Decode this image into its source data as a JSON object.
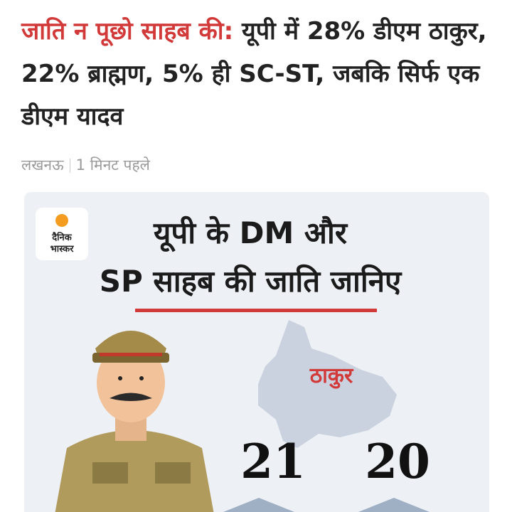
{
  "headline": {
    "lead": "जाति न पूछो साहब की:",
    "rest": "यूपी में 28% डीएम ठाकुर, 22% ब्राह्मण, 5% ही SC-ST, जबकि सिर्फ एक डीएम यादव"
  },
  "meta": {
    "location": "लखनऊ",
    "time": "1 मिनट पहले"
  },
  "infographic": {
    "logo": [
      "दैनिक",
      "भास्कर"
    ],
    "title": [
      "यूपी के DM और",
      "SP साहब की जाति जानिए"
    ],
    "caste": "ठाकुर",
    "counts": [
      "21",
      "20"
    ]
  }
}
